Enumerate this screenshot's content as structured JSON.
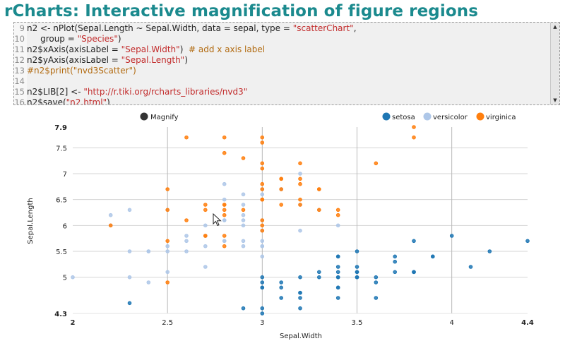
{
  "slide_title": "rCharts: Interactive magnification of figure regions",
  "code": {
    "lines": [
      {
        "num": "9",
        "tokens": [
          {
            "t": "n2 <- nPlot(Sepal.Length ~ Sepal.Width, data = sepal, type = ",
            "c": "plain"
          },
          {
            "t": "\"scatterChart\"",
            "c": "str"
          },
          {
            "t": ",",
            "c": "plain"
          }
        ]
      },
      {
        "num": "10",
        "tokens": [
          {
            "t": "     group = ",
            "c": "plain"
          },
          {
            "t": "\"Species\"",
            "c": "str"
          },
          {
            "t": ")",
            "c": "plain"
          }
        ]
      },
      {
        "num": "11",
        "tokens": [
          {
            "t": "n2$xAxis(axisLabel = ",
            "c": "plain"
          },
          {
            "t": "\"Sepal.Width\"",
            "c": "str"
          },
          {
            "t": ")  ",
            "c": "plain"
          },
          {
            "t": "# add x axis label",
            "c": "cmt"
          }
        ]
      },
      {
        "num": "12",
        "tokens": [
          {
            "t": "n2$yAxis(axisLabel = ",
            "c": "plain"
          },
          {
            "t": "\"Sepal.Length\"",
            "c": "str"
          },
          {
            "t": ")",
            "c": "plain"
          }
        ]
      },
      {
        "num": "13",
        "tokens": [
          {
            "t": "#n2$print(\"nvd3Scatter\")",
            "c": "cmt"
          }
        ]
      },
      {
        "num": "14",
        "tokens": []
      },
      {
        "num": "15",
        "tokens": [
          {
            "t": "n2$LIB[2] <- ",
            "c": "plain"
          },
          {
            "t": "\"http://r.tiki.org/rcharts_libraries/nvd3\"",
            "c": "str"
          }
        ]
      },
      {
        "num": "16",
        "tokens": [
          {
            "t": "n2$save(",
            "c": "plain"
          },
          {
            "t": "\"n2.html\"",
            "c": "str"
          },
          {
            "t": ")",
            "c": "plain"
          }
        ]
      }
    ],
    "scroll_up_glyph": "▲",
    "scroll_down_glyph": "▼"
  },
  "chart_data": {
    "type": "scatter",
    "title": "",
    "xlabel": "Sepal.Width",
    "ylabel": "Sepal.Length",
    "xlim": [
      2,
      4.4
    ],
    "ylim": [
      4.3,
      7.9
    ],
    "xticks": [
      2,
      2.5,
      3,
      3.5,
      4,
      4.4
    ],
    "yticks": [
      4.3,
      5,
      5.5,
      6,
      6.5,
      7,
      7.5,
      7.9
    ],
    "magnify_label": "Magnify",
    "magnify_color": "#333333",
    "series": [
      {
        "name": "setosa",
        "color": "#1f77b4",
        "points": [
          [
            3.5,
            5.1
          ],
          [
            3.0,
            4.9
          ],
          [
            3.2,
            4.7
          ],
          [
            3.1,
            4.6
          ],
          [
            3.6,
            5.0
          ],
          [
            3.9,
            5.4
          ],
          [
            3.4,
            4.6
          ],
          [
            3.4,
            5.0
          ],
          [
            2.9,
            4.4
          ],
          [
            3.1,
            4.9
          ],
          [
            3.7,
            5.4
          ],
          [
            3.4,
            4.8
          ],
          [
            3.0,
            4.8
          ],
          [
            3.0,
            4.3
          ],
          [
            4.0,
            5.8
          ],
          [
            4.4,
            5.7
          ],
          [
            3.9,
            5.4
          ],
          [
            3.5,
            5.1
          ],
          [
            3.8,
            5.7
          ],
          [
            3.8,
            5.1
          ],
          [
            3.4,
            5.4
          ],
          [
            3.7,
            5.1
          ],
          [
            3.6,
            4.6
          ],
          [
            3.3,
            5.1
          ],
          [
            3.4,
            4.8
          ],
          [
            3.0,
            5.0
          ],
          [
            3.4,
            5.0
          ],
          [
            3.5,
            5.2
          ],
          [
            3.4,
            5.2
          ],
          [
            3.2,
            4.7
          ],
          [
            3.1,
            4.8
          ],
          [
            3.4,
            5.4
          ],
          [
            4.1,
            5.2
          ],
          [
            4.2,
            5.5
          ],
          [
            3.2,
            5.0
          ],
          [
            3.5,
            5.5
          ],
          [
            3.6,
            4.9
          ],
          [
            3.0,
            4.4
          ],
          [
            3.4,
            5.1
          ],
          [
            3.5,
            5.0
          ],
          [
            2.3,
            4.5
          ],
          [
            3.2,
            4.4
          ],
          [
            3.5,
            5.0
          ],
          [
            3.8,
            5.1
          ],
          [
            3.0,
            4.8
          ],
          [
            3.8,
            5.1
          ],
          [
            3.2,
            4.6
          ],
          [
            3.7,
            5.3
          ],
          [
            3.3,
            5.0
          ]
        ]
      },
      {
        "name": "versicolor",
        "color": "#aec7e8",
        "points": [
          [
            3.2,
            7.0
          ],
          [
            3.2,
            6.4
          ],
          [
            3.1,
            6.9
          ],
          [
            2.3,
            5.5
          ],
          [
            2.8,
            6.5
          ],
          [
            2.8,
            5.7
          ],
          [
            3.3,
            6.3
          ],
          [
            2.4,
            4.9
          ],
          [
            2.9,
            6.6
          ],
          [
            2.7,
            5.2
          ],
          [
            2.0,
            5.0
          ],
          [
            3.0,
            5.9
          ],
          [
            2.2,
            6.0
          ],
          [
            2.9,
            6.1
          ],
          [
            2.9,
            5.6
          ],
          [
            3.1,
            6.7
          ],
          [
            3.0,
            5.6
          ],
          [
            2.7,
            5.8
          ],
          [
            2.2,
            6.2
          ],
          [
            2.5,
            5.6
          ],
          [
            3.2,
            5.9
          ],
          [
            2.8,
            6.1
          ],
          [
            2.5,
            6.3
          ],
          [
            2.8,
            6.1
          ],
          [
            2.9,
            6.4
          ],
          [
            3.0,
            6.6
          ],
          [
            2.8,
            6.8
          ],
          [
            3.0,
            6.7
          ],
          [
            2.9,
            6.0
          ],
          [
            2.6,
            5.7
          ],
          [
            2.4,
            5.5
          ],
          [
            2.4,
            5.5
          ],
          [
            2.7,
            5.8
          ],
          [
            2.7,
            6.0
          ],
          [
            3.0,
            5.4
          ],
          [
            3.4,
            6.0
          ],
          [
            3.1,
            6.7
          ],
          [
            2.3,
            6.3
          ],
          [
            3.0,
            5.6
          ],
          [
            2.5,
            5.5
          ],
          [
            2.6,
            5.5
          ],
          [
            3.0,
            6.1
          ],
          [
            2.6,
            5.8
          ],
          [
            2.3,
            5.0
          ],
          [
            2.7,
            5.6
          ],
          [
            3.0,
            5.7
          ],
          [
            2.9,
            5.7
          ],
          [
            2.9,
            6.2
          ],
          [
            2.5,
            5.1
          ],
          [
            2.8,
            5.7
          ]
        ]
      },
      {
        "name": "virginica",
        "color": "#ff7f0e",
        "points": [
          [
            3.3,
            6.3
          ],
          [
            2.7,
            5.8
          ],
          [
            3.0,
            7.1
          ],
          [
            2.9,
            6.3
          ],
          [
            3.0,
            6.5
          ],
          [
            3.0,
            7.6
          ],
          [
            2.5,
            4.9
          ],
          [
            2.9,
            7.3
          ],
          [
            2.5,
            6.7
          ],
          [
            3.6,
            7.2
          ],
          [
            3.2,
            6.5
          ],
          [
            2.7,
            6.4
          ],
          [
            3.0,
            6.8
          ],
          [
            2.5,
            5.7
          ],
          [
            2.8,
            5.8
          ],
          [
            3.2,
            6.4
          ],
          [
            3.0,
            6.5
          ],
          [
            3.8,
            7.7
          ],
          [
            2.6,
            7.7
          ],
          [
            2.2,
            6.0
          ],
          [
            3.2,
            6.9
          ],
          [
            2.8,
            5.6
          ],
          [
            2.8,
            7.7
          ],
          [
            2.7,
            6.3
          ],
          [
            3.3,
            6.7
          ],
          [
            3.2,
            7.2
          ],
          [
            2.8,
            6.2
          ],
          [
            3.0,
            6.1
          ],
          [
            2.8,
            6.4
          ],
          [
            3.0,
            7.2
          ],
          [
            2.8,
            7.4
          ],
          [
            3.8,
            7.9
          ],
          [
            2.8,
            6.4
          ],
          [
            2.8,
            6.3
          ],
          [
            2.6,
            6.1
          ],
          [
            3.0,
            7.7
          ],
          [
            3.4,
            6.3
          ],
          [
            3.1,
            6.4
          ],
          [
            3.0,
            6.0
          ],
          [
            3.1,
            6.9
          ],
          [
            3.1,
            6.7
          ],
          [
            3.1,
            6.9
          ],
          [
            2.7,
            5.8
          ],
          [
            3.2,
            6.8
          ],
          [
            3.3,
            6.7
          ],
          [
            3.0,
            6.7
          ],
          [
            2.5,
            6.3
          ],
          [
            3.0,
            6.5
          ],
          [
            3.4,
            6.2
          ],
          [
            3.0,
            5.9
          ]
        ]
      }
    ]
  }
}
